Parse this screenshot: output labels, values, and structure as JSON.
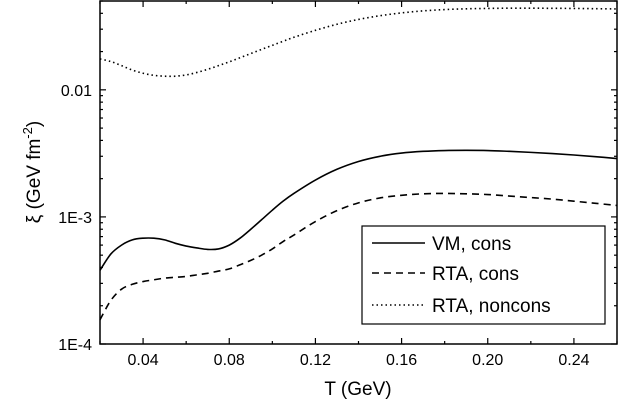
{
  "chart_data": {
    "type": "line",
    "xlabel": "T (GeV)",
    "ylabel": {
      "prefix": "ξ (GeV fm",
      "sup": "-2",
      "suffix": ")"
    },
    "xlim": [
      0.02,
      0.26
    ],
    "ylim": [
      0.0001,
      0.05
    ],
    "yscale": "log",
    "x_ticks": [
      0.04,
      0.08,
      0.12,
      0.16,
      0.2,
      0.24
    ],
    "x_tick_labels": [
      "0.04",
      "0.08",
      "0.12",
      "0.16",
      "0.20",
      "0.24"
    ],
    "y_ticks": [
      0.0001,
      0.001,
      0.01
    ],
    "y_tick_labels": [
      "1E-4",
      "1E-3",
      "0.01"
    ],
    "grid": false,
    "legend_position": "bottom-right",
    "series": [
      {
        "name": "VM, cons",
        "style": "solid",
        "color": "#000000",
        "x": [
          0.02,
          0.025,
          0.03,
          0.035,
          0.04,
          0.045,
          0.05,
          0.055,
          0.06,
          0.065,
          0.07,
          0.075,
          0.08,
          0.085,
          0.09,
          0.095,
          0.1,
          0.105,
          0.11,
          0.12,
          0.13,
          0.14,
          0.15,
          0.16,
          0.17,
          0.18,
          0.19,
          0.2,
          0.21,
          0.22,
          0.23,
          0.24,
          0.25,
          0.26
        ],
        "y": [
          0.00038,
          0.00051,
          0.0006,
          0.00066,
          0.00068,
          0.00068,
          0.00066,
          0.00062,
          0.00059,
          0.00057,
          0.000555,
          0.00056,
          0.0006,
          0.00068,
          0.0008,
          0.00095,
          0.00113,
          0.00133,
          0.00153,
          0.00195,
          0.00237,
          0.00273,
          0.003,
          0.00318,
          0.00328,
          0.00333,
          0.00334,
          0.00333,
          0.00328,
          0.00322,
          0.00315,
          0.00307,
          0.00298,
          0.00288
        ]
      },
      {
        "name": "RTA, cons",
        "style": "dashed",
        "color": "#000000",
        "x": [
          0.02,
          0.025,
          0.03,
          0.035,
          0.04,
          0.045,
          0.05,
          0.055,
          0.06,
          0.065,
          0.07,
          0.075,
          0.08,
          0.085,
          0.09,
          0.095,
          0.1,
          0.105,
          0.11,
          0.12,
          0.13,
          0.14,
          0.15,
          0.16,
          0.17,
          0.18,
          0.19,
          0.2,
          0.21,
          0.22,
          0.23,
          0.24,
          0.25,
          0.26
        ],
        "y": [
          0.000155,
          0.00022,
          0.00027,
          0.000295,
          0.00031,
          0.00032,
          0.00033,
          0.000335,
          0.00034,
          0.00035,
          0.00036,
          0.000375,
          0.00039,
          0.00042,
          0.000455,
          0.0005,
          0.00056,
          0.00064,
          0.00072,
          0.00092,
          0.00112,
          0.00129,
          0.00141,
          0.00148,
          0.00152,
          0.00153,
          0.00152,
          0.0015,
          0.00146,
          0.00142,
          0.00138,
          0.00133,
          0.00128,
          0.00123
        ]
      },
      {
        "name": "RTA, noncons",
        "style": "dotted",
        "color": "#000000",
        "x": [
          0.02,
          0.025,
          0.03,
          0.035,
          0.04,
          0.045,
          0.05,
          0.055,
          0.06,
          0.065,
          0.07,
          0.075,
          0.08,
          0.085,
          0.09,
          0.095,
          0.1,
          0.105,
          0.11,
          0.12,
          0.13,
          0.14,
          0.15,
          0.16,
          0.17,
          0.18,
          0.19,
          0.2,
          0.21,
          0.22,
          0.23,
          0.24,
          0.25,
          0.26
        ],
        "y": [
          0.0175,
          0.0167,
          0.0155,
          0.0143,
          0.0135,
          0.013,
          0.0128,
          0.0128,
          0.0131,
          0.0137,
          0.0145,
          0.0155,
          0.0166,
          0.0179,
          0.0193,
          0.0208,
          0.0224,
          0.0241,
          0.0259,
          0.0294,
          0.0328,
          0.0358,
          0.0383,
          0.0403,
          0.0418,
          0.0428,
          0.0434,
          0.0437,
          0.0439,
          0.0439,
          0.0438,
          0.0437,
          0.0435,
          0.0433
        ]
      }
    ]
  }
}
